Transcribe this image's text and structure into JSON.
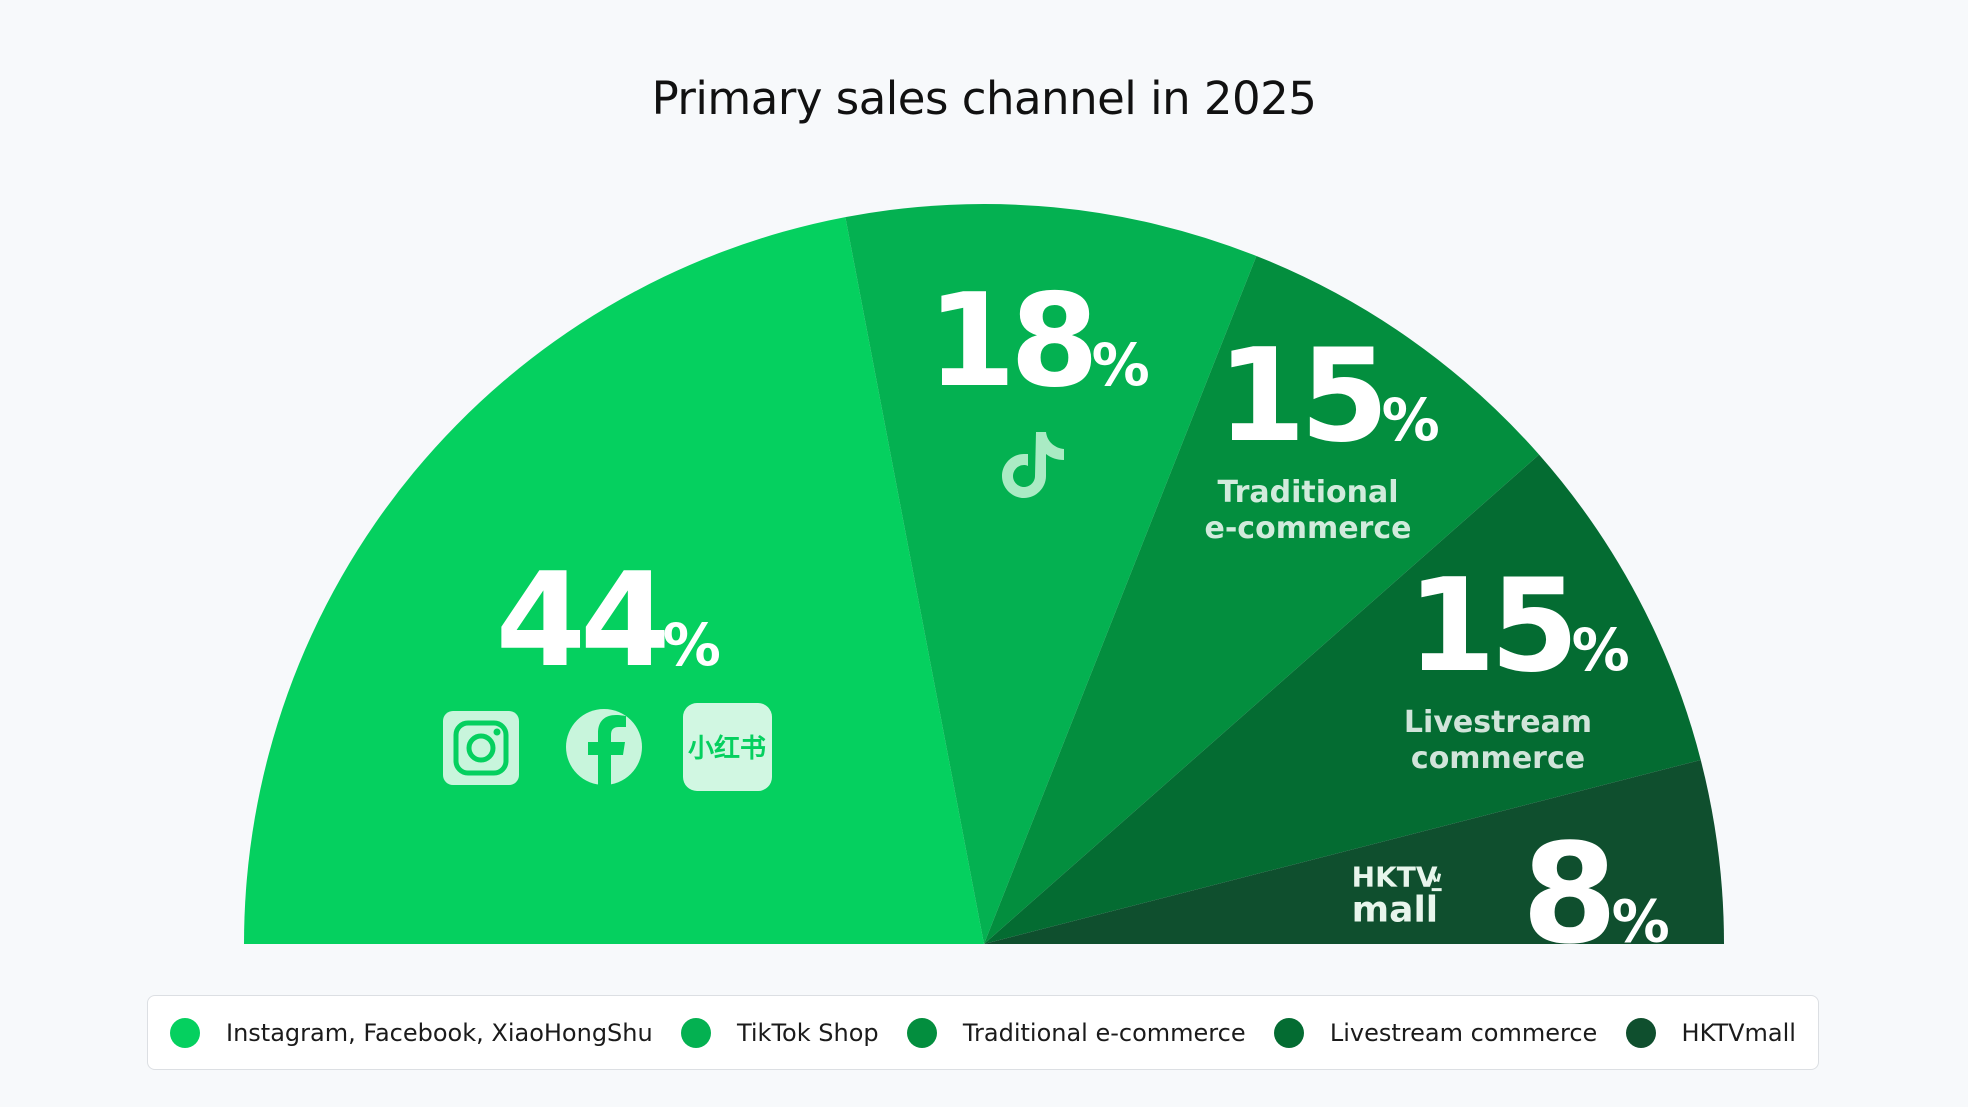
{
  "chart_data": {
    "type": "pie",
    "variant": "half-donut (semicircle)",
    "title": "Primary sales channel in 2025",
    "percent_symbol": "%",
    "slices": [
      {
        "label": "Instagram, Facebook, XiaoHongShu",
        "value": 44,
        "display": "44",
        "color": "#05d05f",
        "icons": [
          "instagram-icon",
          "facebook-icon",
          "xiaohongshu-icon"
        ],
        "caption": []
      },
      {
        "label": "TikTok Shop",
        "value": 18,
        "display": "18",
        "color": "#04b151",
        "icons": [
          "tiktok-icon"
        ],
        "caption": []
      },
      {
        "label": "Traditional e-commerce",
        "value": 15,
        "display": "15",
        "color": "#038e3e",
        "icons": [],
        "caption": [
          "Traditional",
          "e-commerce"
        ]
      },
      {
        "label": "Livestream commerce",
        "value": 15,
        "display": "15",
        "color": "#046c32",
        "icons": [],
        "caption": [
          "Livestream",
          "commerce"
        ]
      },
      {
        "label": "HKTVmall",
        "value": 8,
        "display": "8",
        "color": "#0f4f2e",
        "icons": [
          "hktvmall-logo"
        ],
        "caption": []
      }
    ],
    "legend_position": "bottom",
    "logo_text": {
      "xiaohongshu": "小红书",
      "hktv_top": "HKTV",
      "hktv_bottom": "mall"
    }
  }
}
